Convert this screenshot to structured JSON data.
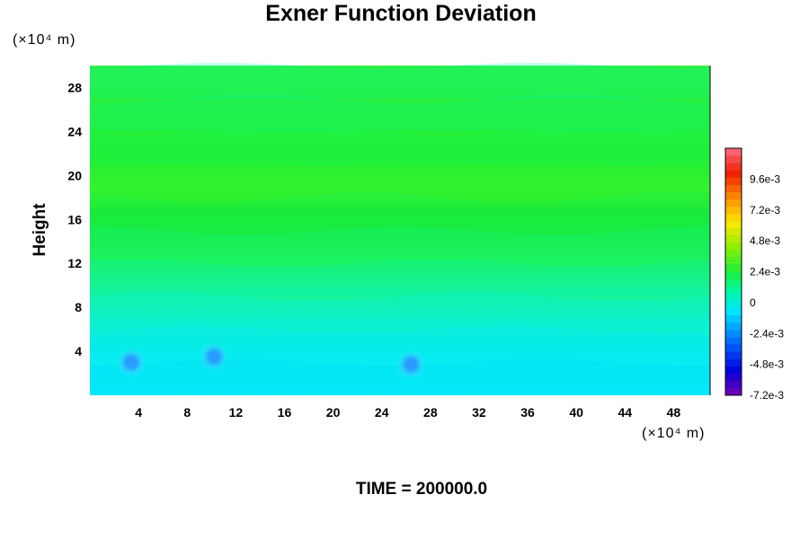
{
  "chart_data": {
    "type": "heatmap",
    "title": "Exner Function Deviation",
    "ylabel": "Height",
    "xlabel": "",
    "x_unit": "(×10⁴ m)",
    "y_unit": "(×10⁴ m)",
    "xlim": [
      0,
      51
    ],
    "ylim": [
      0,
      30
    ],
    "x_ticks": [
      "4",
      "8",
      "12",
      "16",
      "20",
      "24",
      "28",
      "32",
      "36",
      "40",
      "44",
      "48"
    ],
    "y_ticks": [
      "4",
      "8",
      "12",
      "16",
      "20",
      "24",
      "28"
    ],
    "colorbar": {
      "min": -0.0072,
      "max": 0.012,
      "ticks": [
        "9.6e-3",
        "7.2e-3",
        "4.8e-3",
        "2.4e-3",
        "0",
        "-2.4e-3",
        "-4.8e-3",
        "-7.2e-3"
      ],
      "tick_values": [
        0.0096,
        0.0072,
        0.0048,
        0.0024,
        0,
        -0.0024,
        -0.0048,
        -0.0072
      ]
    },
    "field_bands": [
      {
        "y": [
          0,
          3
        ],
        "value": -0.0012
      },
      {
        "y": [
          3,
          6
        ],
        "value": -0.0008
      },
      {
        "y": [
          6,
          9
        ],
        "value": -0.0002
      },
      {
        "y": [
          9,
          12
        ],
        "value": 0.0005
      },
      {
        "y": [
          12,
          15
        ],
        "value": 0.0012
      },
      {
        "y": [
          15,
          18
        ],
        "value": 0.0018
      },
      {
        "y": [
          18,
          21
        ],
        "value": 0.0022
      },
      {
        "y": [
          21,
          24
        ],
        "value": 0.0018
      },
      {
        "y": [
          24,
          27
        ],
        "value": 0.0013
      },
      {
        "y": [
          27,
          30
        ],
        "value": 0.0011
      }
    ],
    "local_minima": [
      {
        "x": 3.4,
        "y": 3.0,
        "value": -0.0022
      },
      {
        "x": 10.2,
        "y": 3.5,
        "value": -0.0028
      },
      {
        "x": 26.4,
        "y": 2.8,
        "value": -0.003
      }
    ],
    "footer": "TIME = 200000.0"
  },
  "colors": {
    "background": "#ffffff",
    "text": "#000000"
  }
}
